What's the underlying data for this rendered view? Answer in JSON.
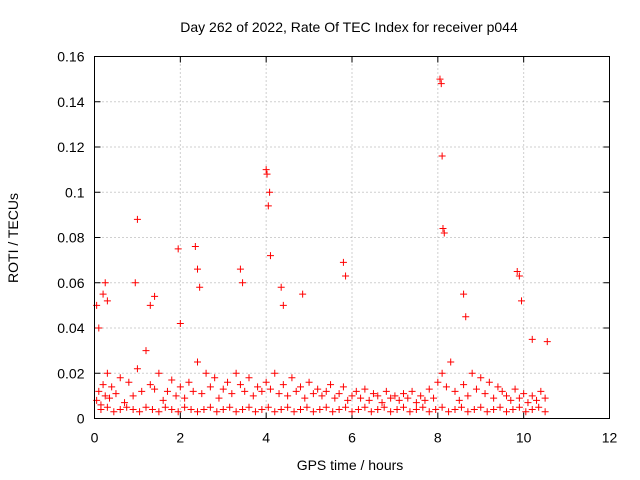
{
  "chart_data": {
    "type": "scatter",
    "title": "Day 262 of 2022, Rate Of TEC Index for receiver p044",
    "xlabel": "GPS time / hours",
    "ylabel": "ROTI / TECUs",
    "xlim": [
      0,
      12
    ],
    "ylim": [
      0,
      0.16
    ],
    "xticks": [
      "0",
      "2",
      "4",
      "6",
      "8",
      "10",
      "12"
    ],
    "yticks": [
      "0",
      "0.02",
      "0.04",
      "0.06",
      "0.08",
      "0.1",
      "0.12",
      "0.14",
      "0.16"
    ],
    "grid": true,
    "marker": "+",
    "color": "#ff0000",
    "series": [
      {
        "name": "p044",
        "x": [
          0.05,
          0.1,
          0.15,
          0.2,
          0.25,
          0.3,
          0.35,
          0.4,
          0.5,
          0.6,
          0.7,
          0.8,
          0.9,
          1.0,
          1.1,
          1.2,
          1.3,
          1.4,
          1.5,
          1.6,
          1.7,
          1.8,
          1.9,
          2.0,
          2.1,
          2.2,
          2.3,
          2.4,
          2.5,
          2.6,
          2.7,
          2.8,
          2.9,
          3.0,
          3.1,
          3.2,
          3.3,
          3.4,
          3.5,
          3.6,
          3.7,
          3.8,
          3.9,
          4.0,
          4.1,
          4.2,
          4.3,
          4.4,
          4.5,
          4.6,
          4.7,
          4.8,
          4.9,
          5.0,
          5.1,
          5.2,
          5.3,
          5.4,
          5.5,
          5.6,
          5.7,
          5.8,
          5.9,
          6.0,
          6.1,
          6.2,
          6.3,
          6.4,
          6.5,
          6.6,
          6.7,
          6.8,
          6.9,
          7.0,
          7.1,
          7.2,
          7.3,
          7.4,
          7.5,
          7.6,
          7.7,
          7.8,
          7.9,
          8.0,
          8.1,
          8.2,
          8.3,
          8.4,
          8.5,
          8.6,
          8.7,
          8.8,
          8.9,
          9.0,
          9.1,
          9.2,
          9.3,
          9.4,
          9.5,
          9.6,
          9.7,
          9.8,
          9.9,
          10.0,
          10.1,
          10.2,
          10.3,
          10.4,
          10.5,
          0.05,
          0.1,
          0.2,
          0.25,
          0.3,
          0.95,
          1.0,
          1.3,
          1.4,
          1.95,
          2.0,
          2.35,
          2.4,
          2.45,
          3.4,
          3.45,
          4.0,
          4.02,
          4.05,
          4.08,
          4.1,
          4.35,
          4.4,
          4.85,
          5.8,
          5.85,
          8.05,
          8.08,
          8.1,
          8.12,
          8.15,
          8.6,
          8.65,
          9.85,
          9.9,
          9.95,
          10.2,
          10.55,
          0.15,
          0.3,
          0.45,
          0.6,
          0.75,
          0.9,
          1.05,
          1.2,
          1.35,
          1.5,
          1.65,
          1.8,
          1.95,
          2.1,
          2.25,
          2.4,
          2.55,
          2.7,
          2.85,
          3.0,
          3.15,
          3.3,
          3.45,
          3.6,
          3.75,
          3.9,
          4.05,
          4.2,
          4.35,
          4.5,
          4.65,
          4.8,
          4.95,
          5.1,
          5.25,
          5.4,
          5.55,
          5.7,
          5.85,
          6.0,
          6.15,
          6.3,
          6.45,
          6.6,
          6.75,
          6.9,
          7.05,
          7.2,
          7.35,
          7.5,
          7.65,
          7.8,
          7.95,
          8.1,
          8.25,
          8.4,
          8.55,
          8.7,
          8.85,
          9.0,
          9.15,
          9.3,
          9.45,
          9.6,
          9.75,
          9.9,
          10.05,
          10.2,
          10.35,
          10.5
        ],
        "y": [
          0.008,
          0.012,
          0.006,
          0.015,
          0.01,
          0.02,
          0.009,
          0.014,
          0.011,
          0.018,
          0.007,
          0.016,
          0.01,
          0.022,
          0.012,
          0.03,
          0.015,
          0.013,
          0.02,
          0.008,
          0.012,
          0.017,
          0.01,
          0.014,
          0.009,
          0.016,
          0.012,
          0.025,
          0.011,
          0.02,
          0.014,
          0.018,
          0.009,
          0.013,
          0.016,
          0.011,
          0.02,
          0.015,
          0.012,
          0.018,
          0.01,
          0.014,
          0.012,
          0.016,
          0.013,
          0.02,
          0.011,
          0.015,
          0.01,
          0.018,
          0.012,
          0.014,
          0.009,
          0.016,
          0.011,
          0.013,
          0.01,
          0.012,
          0.015,
          0.009,
          0.011,
          0.014,
          0.008,
          0.01,
          0.012,
          0.009,
          0.013,
          0.008,
          0.011,
          0.01,
          0.007,
          0.012,
          0.009,
          0.01,
          0.008,
          0.011,
          0.009,
          0.012,
          0.007,
          0.01,
          0.008,
          0.013,
          0.009,
          0.016,
          0.02,
          0.014,
          0.025,
          0.012,
          0.008,
          0.015,
          0.01,
          0.02,
          0.013,
          0.018,
          0.011,
          0.016,
          0.009,
          0.014,
          0.012,
          0.01,
          0.008,
          0.013,
          0.009,
          0.011,
          0.007,
          0.01,
          0.008,
          0.012,
          0.009,
          0.05,
          0.04,
          0.055,
          0.06,
          0.052,
          0.06,
          0.088,
          0.05,
          0.054,
          0.075,
          0.042,
          0.076,
          0.066,
          0.058,
          0.066,
          0.06,
          0.11,
          0.108,
          0.094,
          0.1,
          0.072,
          0.058,
          0.05,
          0.055,
          0.069,
          0.063,
          0.15,
          0.148,
          0.116,
          0.084,
          0.082,
          0.055,
          0.045,
          0.065,
          0.063,
          0.052,
          0.035,
          0.034,
          0.004,
          0.005,
          0.003,
          0.004,
          0.005,
          0.004,
          0.003,
          0.005,
          0.004,
          0.003,
          0.005,
          0.004,
          0.003,
          0.005,
          0.004,
          0.003,
          0.004,
          0.005,
          0.003,
          0.004,
          0.005,
          0.003,
          0.004,
          0.005,
          0.003,
          0.004,
          0.005,
          0.003,
          0.004,
          0.005,
          0.003,
          0.004,
          0.005,
          0.003,
          0.004,
          0.005,
          0.003,
          0.004,
          0.005,
          0.003,
          0.004,
          0.005,
          0.003,
          0.004,
          0.005,
          0.003,
          0.004,
          0.005,
          0.003,
          0.004,
          0.005,
          0.003,
          0.004,
          0.005,
          0.003,
          0.004,
          0.005,
          0.003,
          0.004,
          0.005,
          0.003,
          0.004,
          0.005,
          0.003,
          0.004,
          0.005,
          0.003,
          0.004,
          0.005,
          0.003
        ]
      }
    ]
  }
}
